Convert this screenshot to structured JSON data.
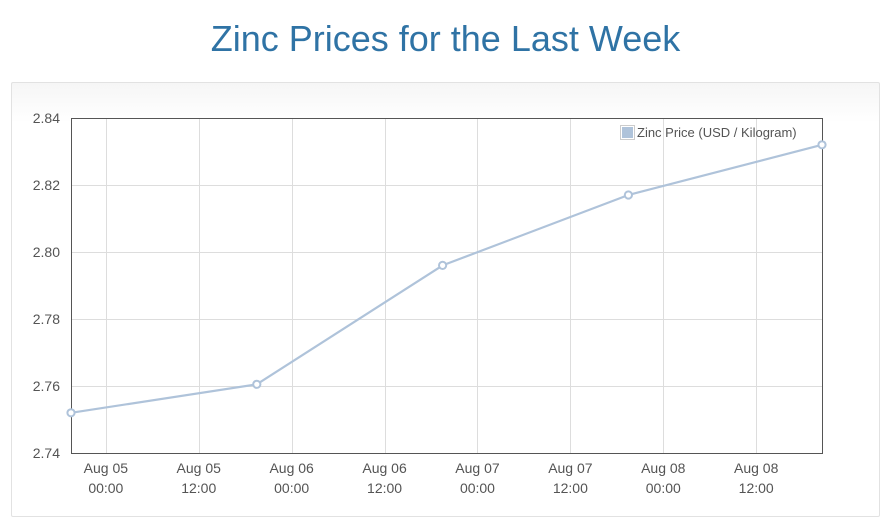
{
  "page": {
    "title": "Zinc Prices for the Last Week"
  },
  "chart_data": {
    "type": "line",
    "title": "Zinc Prices for the Last Week",
    "xlabel": "",
    "ylabel": "",
    "x_axis_type": "time",
    "xlim": [
      "2024-08-04T19:30",
      "2024-08-08T20:30"
    ],
    "ylim": [
      2.74,
      2.84
    ],
    "y_ticks": [
      2.74,
      2.76,
      2.78,
      2.8,
      2.82,
      2.84
    ],
    "y_tick_labels": [
      "2.74",
      "2.76",
      "2.78",
      "2.80",
      "2.82",
      "2.84"
    ],
    "x_ticks": [
      {
        "x": "2024-08-05T00:00",
        "label_line1": "Aug 05",
        "label_line2": "00:00"
      },
      {
        "x": "2024-08-05T12:00",
        "label_line1": "Aug 05",
        "label_line2": "12:00"
      },
      {
        "x": "2024-08-06T00:00",
        "label_line1": "Aug 06",
        "label_line2": "00:00"
      },
      {
        "x": "2024-08-06T12:00",
        "label_line1": "Aug 06",
        "label_line2": "12:00"
      },
      {
        "x": "2024-08-07T00:00",
        "label_line1": "Aug 07",
        "label_line2": "00:00"
      },
      {
        "x": "2024-08-07T12:00",
        "label_line1": "Aug 07",
        "label_line2": "12:00"
      },
      {
        "x": "2024-08-08T00:00",
        "label_line1": "Aug 08",
        "label_line2": "00:00"
      },
      {
        "x": "2024-08-08T12:00",
        "label_line1": "Aug 08",
        "label_line2": "12:00"
      }
    ],
    "grid": true,
    "legend_position": "top-right",
    "series": [
      {
        "name": "Zinc Price (USD / Kilogram)",
        "color": "#afc3da",
        "points": [
          {
            "x": "2024-08-04T19:30",
            "y": 2.752
          },
          {
            "x": "2024-08-05T19:30",
            "y": 2.7605
          },
          {
            "x": "2024-08-06T19:30",
            "y": 2.796
          },
          {
            "x": "2024-08-07T19:30",
            "y": 2.817
          },
          {
            "x": "2024-08-08T20:30",
            "y": 2.832
          }
        ]
      }
    ]
  }
}
